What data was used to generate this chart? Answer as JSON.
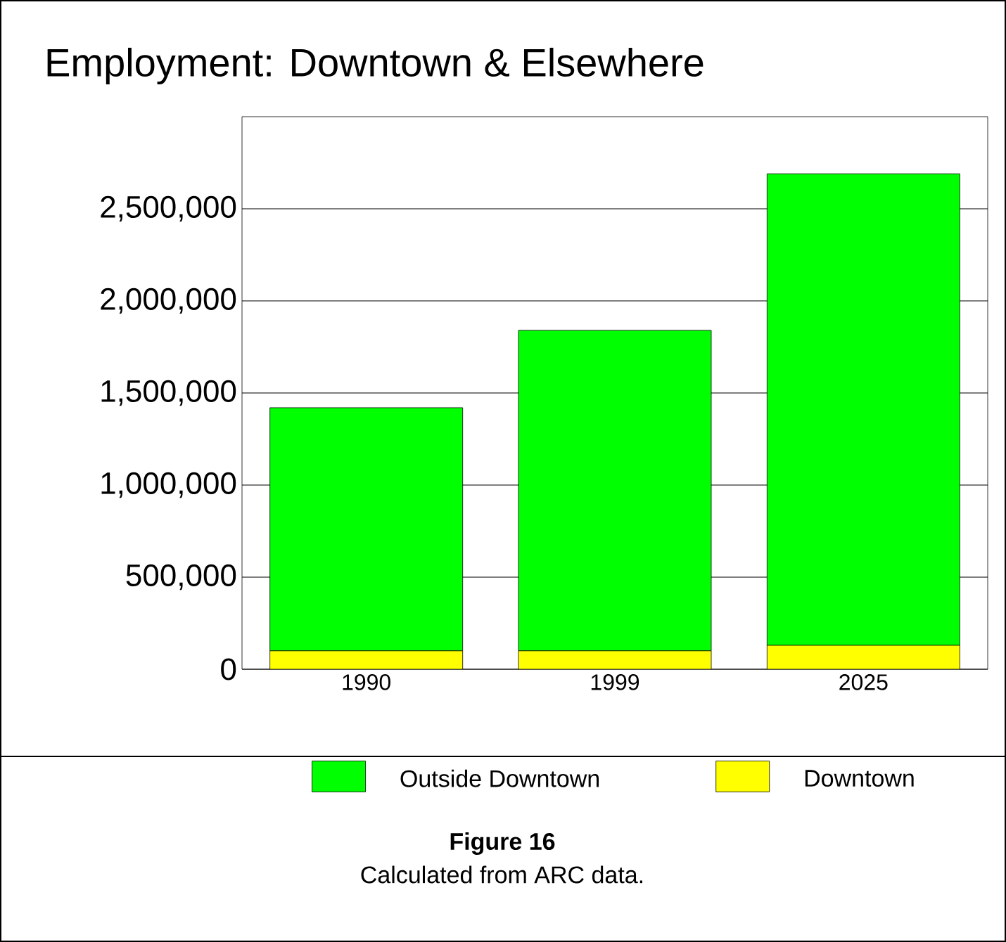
{
  "chart_data": {
    "type": "bar",
    "title": "Employment: Downtown & Elsewhere",
    "categories": [
      "1990",
      "1999",
      "2025"
    ],
    "series": [
      {
        "name": "Downtown",
        "color": "#ffff00",
        "values": [
          100000,
          100000,
          130000
        ]
      },
      {
        "name": "Outside Downtown",
        "color": "#00ff00",
        "values": [
          1320000,
          1740000,
          2560000
        ]
      }
    ],
    "stacked": true,
    "ylim": [
      0,
      3000000
    ],
    "yticks": [
      0,
      {
        "value": 500000,
        "label": "500,000"
      },
      {
        "value": 1000000,
        "label": "1,000,000"
      },
      {
        "value": 1500000,
        "label": "1,500,000"
      },
      {
        "value": 2000000,
        "label": "2,000,000"
      },
      {
        "value": 2500000,
        "label": "2,500,000"
      }
    ],
    "grid": "y",
    "legend": "bottom",
    "annotations": [
      "Figure 16",
      "Calculated from ARC data."
    ]
  }
}
